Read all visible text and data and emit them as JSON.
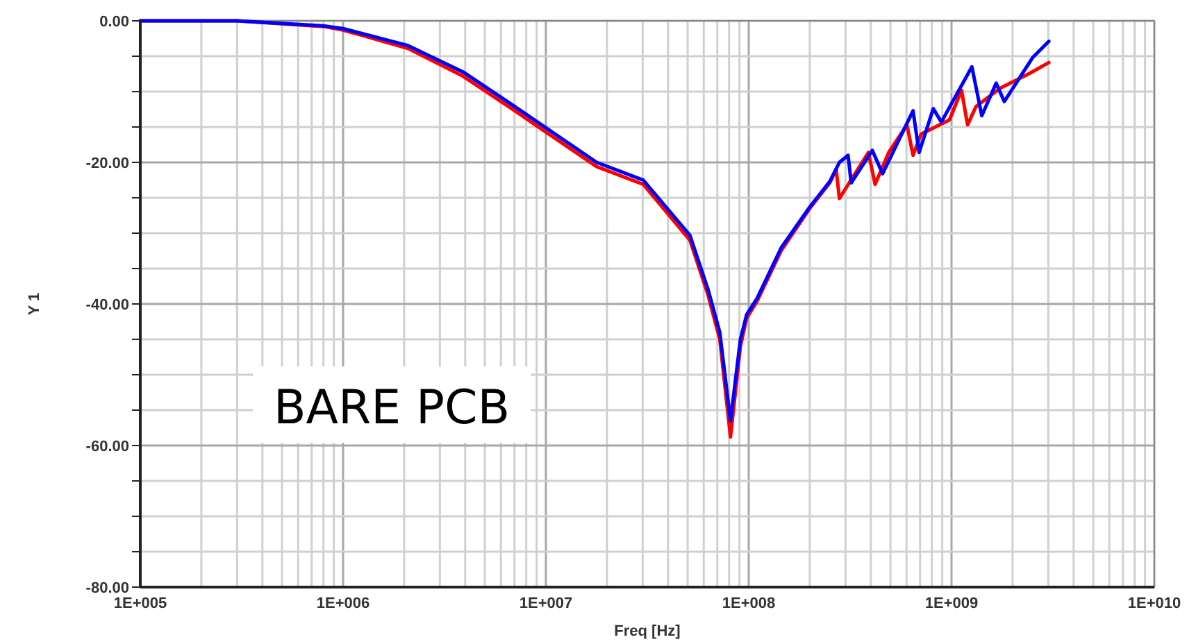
{
  "chart_data": {
    "type": "line",
    "xlabel": "Freq [Hz]",
    "ylabel": "Y 1",
    "log": "x",
    "grid": true,
    "line_style": "solid",
    "marker": "none",
    "xlim": [
      100000,
      10000000000
    ],
    "xticks": [
      {
        "value": 100000,
        "label": "1E+005"
      },
      {
        "value": 200000,
        "label": null
      },
      {
        "value": 300000,
        "label": null
      },
      {
        "value": 400000,
        "label": null
      },
      {
        "value": 500000,
        "label": null
      },
      {
        "value": 600000,
        "label": null
      },
      {
        "value": 700000,
        "label": null
      },
      {
        "value": 800000,
        "label": null
      },
      {
        "value": 900000,
        "label": null
      },
      {
        "value": 1000000,
        "label": "1E+006"
      },
      {
        "value": 2000000,
        "label": null
      },
      {
        "value": 3000000,
        "label": null
      },
      {
        "value": 4000000,
        "label": null
      },
      {
        "value": 5000000,
        "label": null
      },
      {
        "value": 6000000,
        "label": null
      },
      {
        "value": 7000000,
        "label": null
      },
      {
        "value": 8000000,
        "label": null
      },
      {
        "value": 9000000,
        "label": null
      },
      {
        "value": 10000000,
        "label": "1E+007"
      },
      {
        "value": 20000000,
        "label": null
      },
      {
        "value": 30000000,
        "label": null
      },
      {
        "value": 40000000,
        "label": null
      },
      {
        "value": 50000000,
        "label": null
      },
      {
        "value": 60000000,
        "label": null
      },
      {
        "value": 70000000,
        "label": null
      },
      {
        "value": 80000000,
        "label": null
      },
      {
        "value": 90000000,
        "label": null
      },
      {
        "value": 100000000,
        "label": "1E+008"
      },
      {
        "value": 200000000,
        "label": null
      },
      {
        "value": 300000000,
        "label": null
      },
      {
        "value": 400000000,
        "label": null
      },
      {
        "value": 500000000,
        "label": null
      },
      {
        "value": 600000000,
        "label": null
      },
      {
        "value": 700000000,
        "label": null
      },
      {
        "value": 800000000,
        "label": null
      },
      {
        "value": 900000000,
        "label": null
      },
      {
        "value": 1000000000,
        "label": "1E+009"
      },
      {
        "value": 2000000000,
        "label": null
      },
      {
        "value": 3000000000,
        "label": null
      },
      {
        "value": 4000000000,
        "label": null
      },
      {
        "value": 5000000000,
        "label": null
      },
      {
        "value": 6000000000,
        "label": null
      },
      {
        "value": 7000000000,
        "label": null
      },
      {
        "value": 8000000000,
        "label": null
      },
      {
        "value": 9000000000,
        "label": null
      },
      {
        "value": 10000000000,
        "label": "1E+010"
      }
    ],
    "ylim": [
      -80,
      0
    ],
    "yticks": [
      {
        "value": -80,
        "label": "-80.00"
      },
      {
        "value": -75,
        "label": null
      },
      {
        "value": -70,
        "label": null
      },
      {
        "value": -65,
        "label": null
      },
      {
        "value": -60,
        "label": "-60.00"
      },
      {
        "value": -55,
        "label": null
      },
      {
        "value": -50,
        "label": null
      },
      {
        "value": -45,
        "label": null
      },
      {
        "value": -40,
        "label": "-40.00"
      },
      {
        "value": -35,
        "label": null
      },
      {
        "value": -30,
        "label": null
      },
      {
        "value": -25,
        "label": null
      },
      {
        "value": -20,
        "label": "-20.00"
      },
      {
        "value": -15,
        "label": null
      },
      {
        "value": -10,
        "label": null
      },
      {
        "value": -5,
        "label": null
      },
      {
        "value": 0,
        "label": "0.00"
      }
    ],
    "annotations": [
      "BARE PCB"
    ],
    "series": [
      {
        "color": "#ff0000",
        "x": [
          100000,
          300000,
          800000,
          1000000,
          2090000,
          3890000,
          6610000,
          17800000,
          30200000,
          51300000,
          63100000,
          72000000,
          81300000,
          91000000,
          97700000,
          110000000,
          145000000,
          200000000,
          251000000,
          270000000,
          280000000,
          389000000,
          420000000,
          490000000,
          603000000,
          646000000,
          708000000,
          977000000,
          1120000000,
          1200000000,
          1320000000,
          1740000000,
          2400000000,
          3020000000
        ],
        "values": [
          0,
          0,
          -0.8,
          -1.3,
          -3.9,
          -7.8,
          -12.2,
          -20.6,
          -23.1,
          -31,
          -38.8,
          -45,
          -58.8,
          -46,
          -42,
          -39.6,
          -32.4,
          -26.5,
          -22.9,
          -21,
          -25.1,
          -18.6,
          -23.1,
          -18.6,
          -14.7,
          -19,
          -16,
          -14,
          -9.8,
          -14.7,
          -12.1,
          -9.5,
          -7.5,
          -5.9
        ]
      },
      {
        "color": "#0000ff",
        "x": [
          100000,
          300000,
          800000,
          1000000,
          2090000,
          3890000,
          6610000,
          17800000,
          30200000,
          51300000,
          63100000,
          72000000,
          81300000,
          91000000,
          97700000,
          110000000,
          145000000,
          200000000,
          251000000,
          280000000,
          309000000,
          320000000,
          407000000,
          457000000,
          646000000,
          692000000,
          813000000,
          891000000,
          1260000000,
          1410000000,
          1660000000,
          1820000000,
          2510000000,
          3020000000
        ],
        "values": [
          0,
          0,
          -0.7,
          -1.1,
          -3.5,
          -7.2,
          -11.6,
          -20,
          -22.5,
          -30.3,
          -38,
          -44,
          -56.5,
          -45,
          -41.5,
          -39.2,
          -32,
          -26.3,
          -22.7,
          -20,
          -19,
          -22.9,
          -18.3,
          -21.6,
          -12.7,
          -18.6,
          -12.4,
          -14.3,
          -6.5,
          -13.4,
          -8.8,
          -11.4,
          -5.2,
          -2.9
        ]
      }
    ]
  }
}
